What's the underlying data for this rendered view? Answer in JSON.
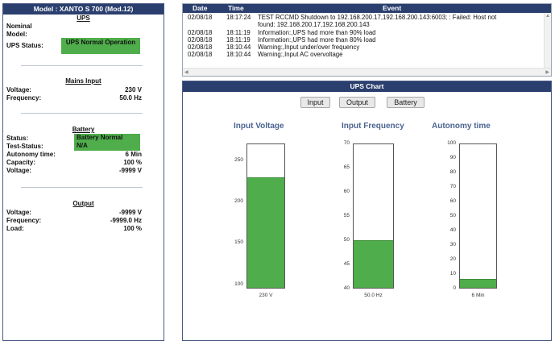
{
  "left": {
    "header": "Model : XANTO S 700 (Mod.12)",
    "ups": {
      "title": "UPS",
      "nominal_label": "Nominal",
      "model_label": "Model:",
      "status_label": "UPS Status:",
      "status_value": "UPS Normal Operation",
      "status_color": "#4fae4b"
    },
    "mains": {
      "title": "Mains Input",
      "voltage_label": "Voltage:",
      "voltage_value": "230 V",
      "frequency_label": "Frequency:",
      "frequency_value": "50.0 Hz"
    },
    "battery": {
      "title": "Battery",
      "status_label": "Status:",
      "status_value": "Battery Normal",
      "test_label": "Test-Status:",
      "test_value": "N/A",
      "autonomy_label": "Autonomy time:",
      "autonomy_value": "6 Min",
      "capacity_label": "Capacity:",
      "capacity_value": "100 %",
      "voltage_label": "Voltage:",
      "voltage_value": "-9999 V"
    },
    "output": {
      "title": "Output",
      "voltage_label": "Voltage:",
      "voltage_value": "-9999 V",
      "frequency_label": "Frequency:",
      "frequency_value": "-9999.0 Hz",
      "load_label": "Load:",
      "load_value": "100 %"
    }
  },
  "log": {
    "columns": {
      "date": "Date",
      "time": "Time",
      "event": "Event"
    },
    "rows": [
      {
        "date": "02/08/18",
        "time": "18:17:24",
        "event_line1": "TEST RCCMD Shutdown to 192.168.200.17,192.168.200.143:6003; : Failed: Host not",
        "event_line2": "found: 192.168.200.17,192.168.200.143"
      },
      {
        "date": "02/08/18",
        "time": "18:11:19",
        "event_line1": "Information:,UPS had more than 90% load"
      },
      {
        "date": "02/08/18",
        "time": "18:11:19",
        "event_line1": "Information:,UPS had more than 80% load"
      },
      {
        "date": "02/08/18",
        "time": "18:10:44",
        "event_line1": "Warning:,Input under/over frequency"
      },
      {
        "date": "02/08/18",
        "time": "18:10:44",
        "event_line1": "Warning:,Input AC overvoltage"
      }
    ]
  },
  "chart_panel": {
    "header": "UPS Chart",
    "buttons": {
      "input": "Input",
      "output": "Output",
      "battery": "Battery"
    },
    "fill_color": "#4fae4b",
    "title_color": "#4b6390"
  },
  "chart_data": [
    {
      "type": "bar",
      "title": "Input Voltage",
      "categories": [
        "230 V"
      ],
      "values": [
        230
      ],
      "ylim": [
        95,
        270
      ],
      "yticks": [
        100,
        150,
        200,
        250
      ],
      "value_label": "230 V"
    },
    {
      "type": "bar",
      "title": "Input Frequency",
      "categories": [
        "50.0 Hz"
      ],
      "values": [
        50
      ],
      "ylim": [
        40,
        70
      ],
      "yticks": [
        40,
        45,
        50,
        55,
        60,
        65,
        70
      ],
      "value_label": "50.0 Hz"
    },
    {
      "type": "bar",
      "title": "Autonomy time",
      "categories": [
        "6 Min"
      ],
      "values": [
        6
      ],
      "ylim": [
        0,
        100
      ],
      "yticks": [
        0,
        10,
        20,
        30,
        40,
        50,
        60,
        70,
        80,
        90,
        100
      ],
      "value_label": "6 Min"
    }
  ]
}
